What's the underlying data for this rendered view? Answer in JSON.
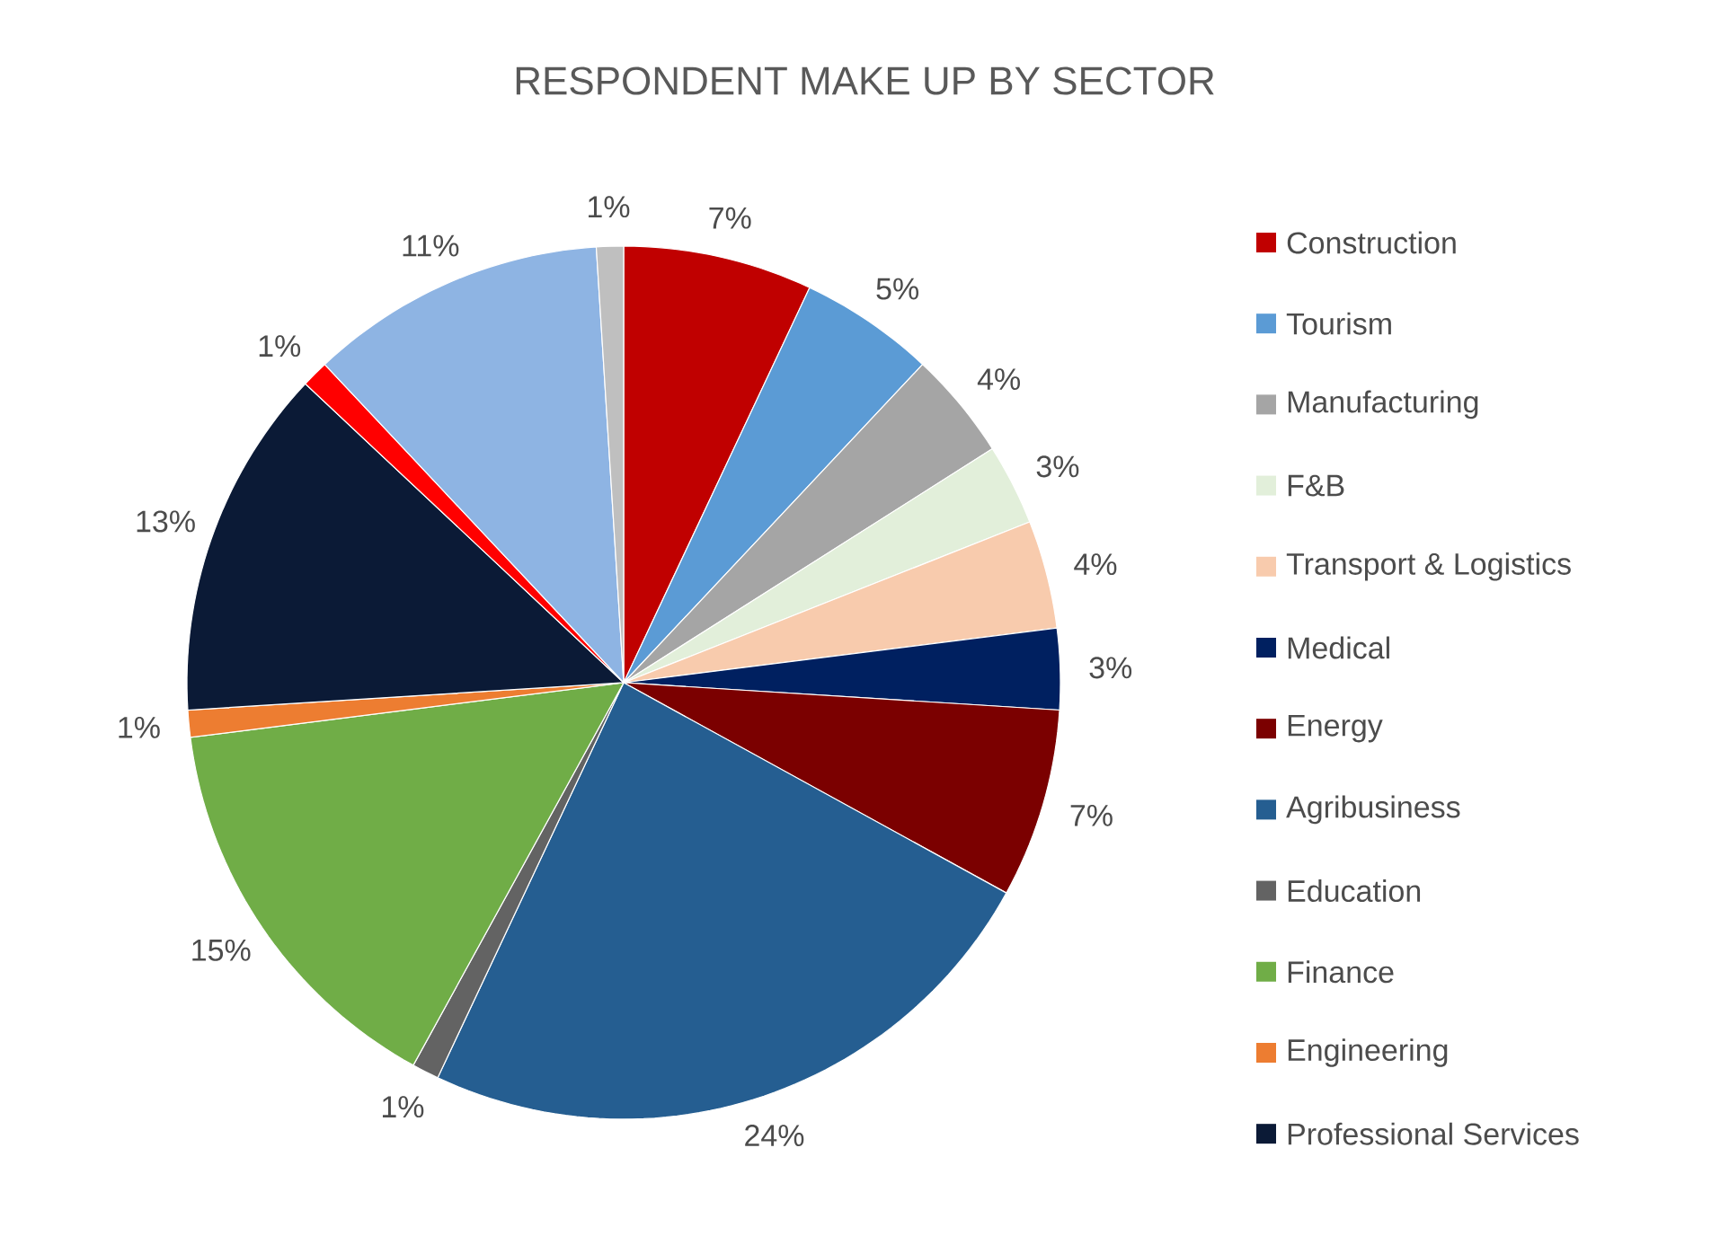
{
  "chart_data": {
    "type": "pie",
    "title": "RESPONDENT MAKE UP BY SECTOR",
    "categories": [
      "Construction",
      "Tourism",
      "Manufacturing",
      "F&B",
      "Transport & Logistics",
      "Medical",
      "Energy",
      "Agribusiness",
      "Education",
      "Finance",
      "Engineering",
      "Professional Services",
      null,
      null,
      null
    ],
    "values": [
      7,
      5,
      4,
      3,
      4,
      3,
      7,
      24,
      1,
      15,
      1,
      13,
      1,
      11,
      1
    ],
    "value_labels": [
      "7%",
      "5%",
      "4%",
      "3%",
      "4%",
      "3%",
      "7%",
      "24%",
      "1%",
      "15%",
      "1%",
      "13%",
      "1%",
      "11%",
      "1%"
    ],
    "colors": [
      "#c00000",
      "#5b9bd5",
      "#a5a5a5",
      "#e2efda",
      "#f8cbad",
      "#002060",
      "#7b0000",
      "#255e91",
      "#636363",
      "#70ad47",
      "#ed7d31",
      "#0b1a36",
      "#ff0000",
      "#8eb4e3",
      "#bfbfbf"
    ],
    "legend": "right"
  }
}
